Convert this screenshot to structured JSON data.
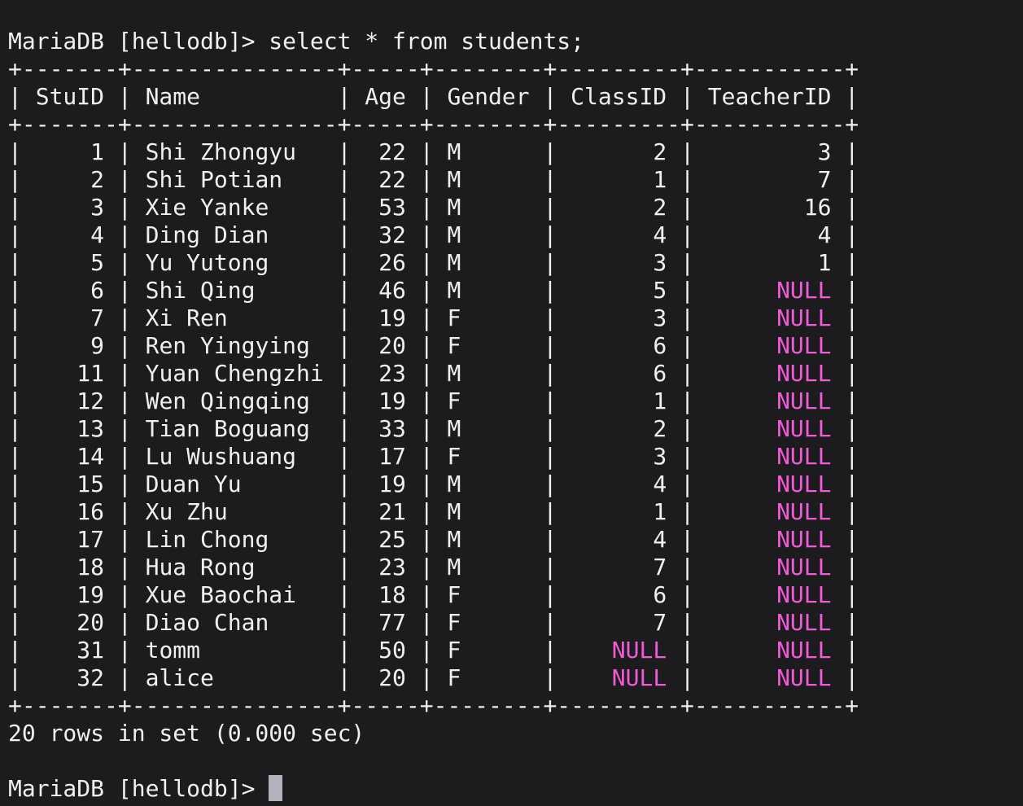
{
  "terminal": {
    "colors": {
      "background": "#1c1c1e",
      "foreground": "#f0f0f0",
      "null_text": "#f25ad7",
      "cursor": "#b2b2be"
    },
    "prompt": "MariaDB [hellodb]> ",
    "command": "select * from students;",
    "status_line": "20 rows in set (0.000 sec)"
  },
  "result_table": {
    "columns": [
      {
        "label": "StuID",
        "width": 5,
        "align": "right"
      },
      {
        "label": "Name",
        "width": 13,
        "align": "left"
      },
      {
        "label": "Age",
        "width": 3,
        "align": "right"
      },
      {
        "label": "Gender",
        "width": 6,
        "align": "left"
      },
      {
        "label": "ClassID",
        "width": 7,
        "align": "right"
      },
      {
        "label": "TeacherID",
        "width": 9,
        "align": "right"
      }
    ],
    "null_literal": "NULL",
    "rows": [
      [
        "1",
        "Shi Zhongyu",
        "22",
        "M",
        "2",
        "3"
      ],
      [
        "2",
        "Shi Potian",
        "22",
        "M",
        "1",
        "7"
      ],
      [
        "3",
        "Xie Yanke",
        "53",
        "M",
        "2",
        "16"
      ],
      [
        "4",
        "Ding Dian",
        "32",
        "M",
        "4",
        "4"
      ],
      [
        "5",
        "Yu Yutong",
        "26",
        "M",
        "3",
        "1"
      ],
      [
        "6",
        "Shi Qing",
        "46",
        "M",
        "5",
        "NULL"
      ],
      [
        "7",
        "Xi Ren",
        "19",
        "F",
        "3",
        "NULL"
      ],
      [
        "9",
        "Ren Yingying",
        "20",
        "F",
        "6",
        "NULL"
      ],
      [
        "11",
        "Yuan Chengzhi",
        "23",
        "M",
        "6",
        "NULL"
      ],
      [
        "12",
        "Wen Qingqing",
        "19",
        "F",
        "1",
        "NULL"
      ],
      [
        "13",
        "Tian Boguang",
        "33",
        "M",
        "2",
        "NULL"
      ],
      [
        "14",
        "Lu Wushuang",
        "17",
        "F",
        "3",
        "NULL"
      ],
      [
        "15",
        "Duan Yu",
        "19",
        "M",
        "4",
        "NULL"
      ],
      [
        "16",
        "Xu Zhu",
        "21",
        "M",
        "1",
        "NULL"
      ],
      [
        "17",
        "Lin Chong",
        "25",
        "M",
        "4",
        "NULL"
      ],
      [
        "18",
        "Hua Rong",
        "23",
        "M",
        "7",
        "NULL"
      ],
      [
        "19",
        "Xue Baochai",
        "18",
        "F",
        "6",
        "NULL"
      ],
      [
        "20",
        "Diao Chan",
        "77",
        "F",
        "7",
        "NULL"
      ],
      [
        "31",
        "tomm",
        "50",
        "F",
        "NULL",
        "NULL"
      ],
      [
        "32",
        "alice",
        "20",
        "F",
        "NULL",
        "NULL"
      ]
    ]
  }
}
